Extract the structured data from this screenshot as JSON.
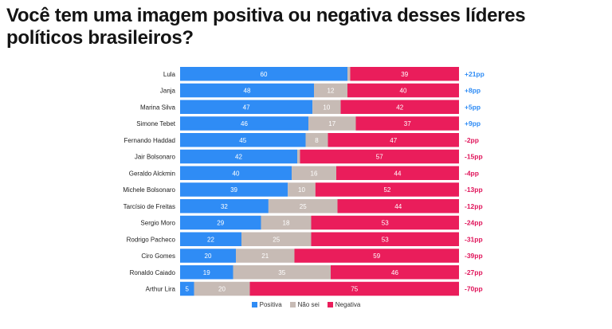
{
  "title": "Você tem uma imagem positiva ou negativa desses líderes políticos brasileiros?",
  "colors": {
    "positiva": "#2f8cf5",
    "nao_sei": "#c7bbb5",
    "negativa": "#ea1d5b",
    "diff_positive": "#2f8cf5",
    "diff_negative": "#e0145a"
  },
  "legend": [
    {
      "label": "Positiva",
      "color": "#2f8cf5"
    },
    {
      "label": "Não sei",
      "color": "#c7bbb5"
    },
    {
      "label": "Negativa",
      "color": "#ea1d5b"
    }
  ],
  "chart_data": {
    "type": "bar",
    "orientation": "horizontal",
    "stacked": true,
    "categories": [
      "Lula",
      "Janja",
      "Marina Silva",
      "Simone Tebet",
      "Fernando Haddad",
      "Jair Bolsonaro",
      "Geraldo Alckmin",
      "Michele Bolsonaro",
      "Tarcísio de Freitas",
      "Sergio Moro",
      "Rodrigo Pacheco",
      "Ciro Gomes",
      "Ronaldo Caiado",
      "Arthur Lira"
    ],
    "series": [
      {
        "name": "Positiva",
        "values": [
          60,
          48,
          47,
          46,
          45,
          42,
          40,
          39,
          32,
          29,
          22,
          20,
          19,
          5
        ]
      },
      {
        "name": "Não sei",
        "values": [
          1,
          12,
          10,
          17,
          8,
          1,
          16,
          10,
          25,
          18,
          25,
          21,
          35,
          20
        ]
      },
      {
        "name": "Negativa",
        "values": [
          39,
          40,
          42,
          37,
          47,
          57,
          44,
          52,
          44,
          53,
          53,
          59,
          46,
          75
        ]
      }
    ],
    "value_labels": {
      "Positiva": [
        "60",
        "48",
        "47",
        "46",
        "45",
        "42",
        "40",
        "39",
        "32",
        "29",
        "22",
        "20",
        "19",
        "5"
      ],
      "Não sei": [
        "",
        "12",
        "10",
        "17",
        "8",
        "",
        "16",
        "10",
        "25",
        "18",
        "25",
        "21",
        "35",
        "20"
      ],
      "Negativa": [
        "39",
        "40",
        "42",
        "37",
        "47",
        "57",
        "44",
        "52",
        "44",
        "53",
        "53",
        "59",
        "46",
        "75"
      ]
    },
    "net": [
      "+21pp",
      "+8pp",
      "+5pp",
      "+9pp",
      "-2pp",
      "-15pp",
      "-4pp",
      "-13pp",
      "-12pp",
      "-24pp",
      "-31pp",
      "-39pp",
      "-27pp",
      "-70pp"
    ],
    "xlim": [
      0,
      100
    ],
    "legend_position": "bottom-center",
    "grid": false
  }
}
